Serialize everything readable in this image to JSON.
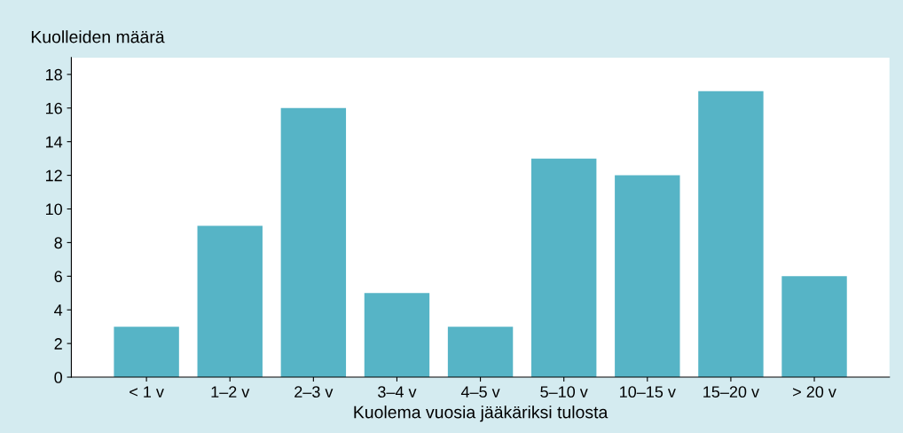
{
  "chart_data": {
    "type": "bar",
    "ylabel": "Kuolleiden määrä",
    "xlabel": "Kuolema vuosia jääkäriksi tulosta",
    "categories": [
      "< 1 v",
      "1–2 v",
      "2–3 v",
      "3–4 v",
      "4–5 v",
      "5–10 v",
      "10–15 v",
      "15–20 v",
      "> 20 v"
    ],
    "values": [
      3,
      9,
      16,
      5,
      3,
      13,
      12,
      17,
      6
    ],
    "color": "#56b4c6",
    "ylim": [
      0,
      19
    ],
    "yticks": [
      0,
      2,
      4,
      6,
      8,
      10,
      12,
      14,
      16,
      18
    ],
    "grid": false,
    "legend": false
  }
}
